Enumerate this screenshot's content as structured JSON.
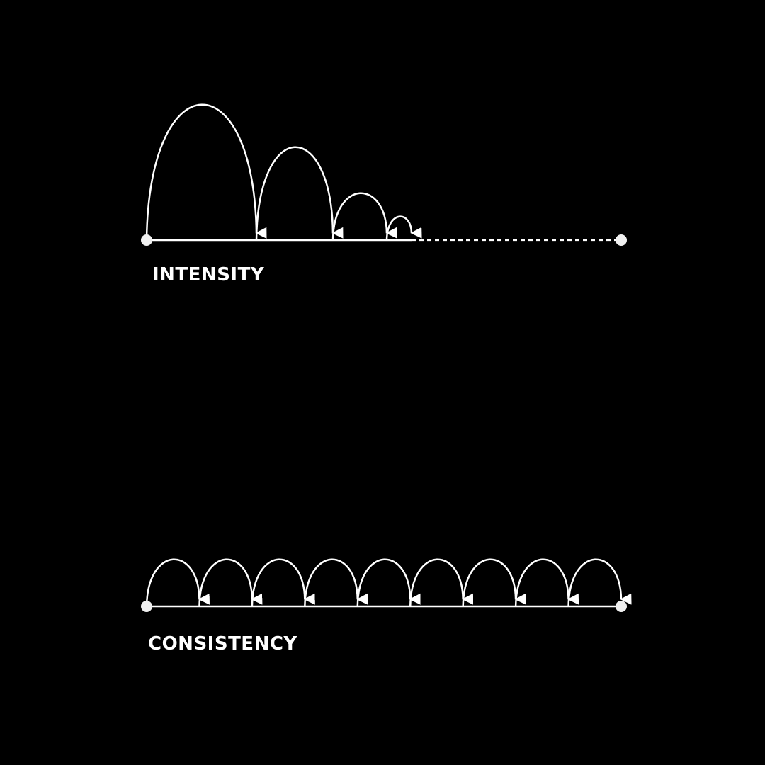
{
  "colors": {
    "background": "#000000",
    "stroke": "#ffffff",
    "dot": "#f0f0f0"
  },
  "intensity": {
    "label": "INTENSITY",
    "jump_widths": [
      155,
      108,
      76,
      35
    ],
    "jump_heights": [
      190,
      130,
      65,
      32
    ],
    "remaining_path_style": "dashed",
    "end_dot": true
  },
  "consistency": {
    "label": "CONSISTENCY",
    "jump_count": 9,
    "jump_height": 65,
    "end_dot": true
  }
}
